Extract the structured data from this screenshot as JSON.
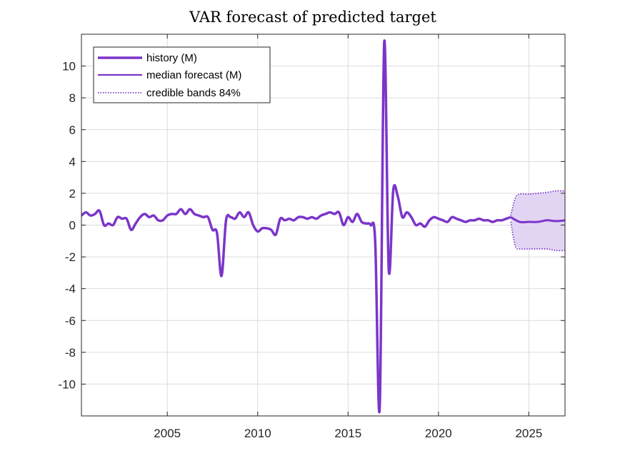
{
  "chart_data": {
    "type": "line",
    "title": "VAR forecast of predicted target",
    "xlabel": "",
    "ylabel": "",
    "xlim": [
      2000.25,
      2027.0
    ],
    "ylim": [
      -12,
      12
    ],
    "xticks": [
      2005,
      2010,
      2015,
      2020,
      2025
    ],
    "xtick_labels": [
      "2005",
      "2010",
      "2015",
      "2020",
      "2025"
    ],
    "yticks": [
      -10,
      -8,
      -6,
      -4,
      -2,
      0,
      2,
      4,
      6,
      8,
      10
    ],
    "ytick_labels": [
      "-10",
      "-8",
      "-6",
      "-4",
      "-2",
      "0",
      "2",
      "4",
      "6",
      "8",
      "10"
    ],
    "grid": true,
    "legend_position": "top-left",
    "colors": {
      "line": "#7b35c9",
      "band_fill": "#e2d5f3",
      "band_edge": "#7b35c9"
    },
    "legend": [
      {
        "label": "history (M)",
        "style": "thick-solid"
      },
      {
        "label": "median forecast (M)",
        "style": "solid"
      },
      {
        "label": "credible bands 84%",
        "style": "dotted"
      }
    ],
    "series": [
      {
        "name": "history (M)",
        "x": [
          2000.25,
          2000.5,
          2000.75,
          2001.0,
          2001.25,
          2001.5,
          2001.75,
          2002.0,
          2002.25,
          2002.5,
          2002.75,
          2003.0,
          2003.25,
          2003.5,
          2003.75,
          2004.0,
          2004.25,
          2004.5,
          2004.75,
          2005.0,
          2005.25,
          2005.5,
          2005.75,
          2006.0,
          2006.25,
          2006.5,
          2006.75,
          2007.0,
          2007.25,
          2007.5,
          2007.75,
          2008.0,
          2008.25,
          2008.5,
          2008.75,
          2009.0,
          2009.25,
          2009.5,
          2009.75,
          2010.0,
          2010.25,
          2010.5,
          2010.75,
          2011.0,
          2011.25,
          2011.5,
          2011.75,
          2012.0,
          2012.25,
          2012.5,
          2012.75,
          2013.0,
          2013.25,
          2013.5,
          2013.75,
          2014.0,
          2014.25,
          2014.5,
          2014.75,
          2015.0,
          2015.25,
          2015.5,
          2015.75,
          2016.0,
          2016.25,
          2016.5,
          2016.75,
          2017.0,
          2017.25,
          2017.5,
          2017.75,
          2018.0,
          2018.25,
          2018.5,
          2018.75,
          2019.0,
          2019.25,
          2019.5,
          2019.75,
          2020.0,
          2020.25,
          2020.5,
          2020.75,
          2021.0,
          2021.25,
          2021.5,
          2021.75,
          2022.0,
          2022.25,
          2022.5,
          2022.75,
          2023.0,
          2023.25,
          2023.5,
          2023.75,
          2024.0
        ],
        "values": [
          0.6,
          0.8,
          0.6,
          0.7,
          0.9,
          0.0,
          0.1,
          0.0,
          0.5,
          0.4,
          0.4,
          -0.3,
          0.1,
          0.5,
          0.7,
          0.5,
          0.6,
          0.3,
          0.3,
          0.6,
          0.7,
          0.7,
          1.0,
          0.7,
          1.0,
          0.7,
          0.6,
          0.5,
          0.5,
          -0.3,
          -0.5,
          -3.2,
          0.3,
          0.5,
          0.4,
          0.8,
          0.5,
          0.8,
          0.0,
          -0.4,
          -0.2,
          -0.2,
          -0.3,
          -0.6,
          0.4,
          0.3,
          0.4,
          0.3,
          0.5,
          0.5,
          0.4,
          0.5,
          0.4,
          0.6,
          0.7,
          0.8,
          0.7,
          0.8,
          0.0,
          0.5,
          0.2,
          0.7,
          0.2,
          0.1,
          0.0,
          -1.0,
          -11.5,
          11.5,
          -2.8,
          2.2,
          1.8,
          0.5,
          0.8,
          0.5,
          0.0,
          0.1,
          -0.1,
          0.3,
          0.5,
          0.4,
          0.3,
          0.2,
          0.5,
          0.4,
          0.3,
          0.2,
          0.3,
          0.3,
          0.4,
          0.3,
          0.3,
          0.2,
          0.3,
          0.3,
          0.4,
          0.5
        ]
      },
      {
        "name": "median forecast (M)",
        "x": [
          2024.0,
          2024.5,
          2025.0,
          2025.5,
          2026.0,
          2026.5,
          2027.0
        ],
        "values": [
          0.5,
          0.2,
          0.2,
          0.2,
          0.3,
          0.25,
          0.3
        ]
      },
      {
        "name": "credible bands 84% (upper)",
        "x": [
          2024.0,
          2024.25,
          2024.5,
          2025.0,
          2025.5,
          2026.0,
          2026.5,
          2027.0
        ],
        "values": [
          0.6,
          1.7,
          1.95,
          1.95,
          2.0,
          2.05,
          2.15,
          2.15
        ]
      },
      {
        "name": "credible bands 84% (lower)",
        "x": [
          2024.0,
          2024.25,
          2024.5,
          2025.0,
          2025.5,
          2026.0,
          2026.5,
          2027.0
        ],
        "values": [
          0.2,
          -1.3,
          -1.5,
          -1.5,
          -1.5,
          -1.5,
          -1.6,
          -1.6
        ]
      }
    ]
  }
}
